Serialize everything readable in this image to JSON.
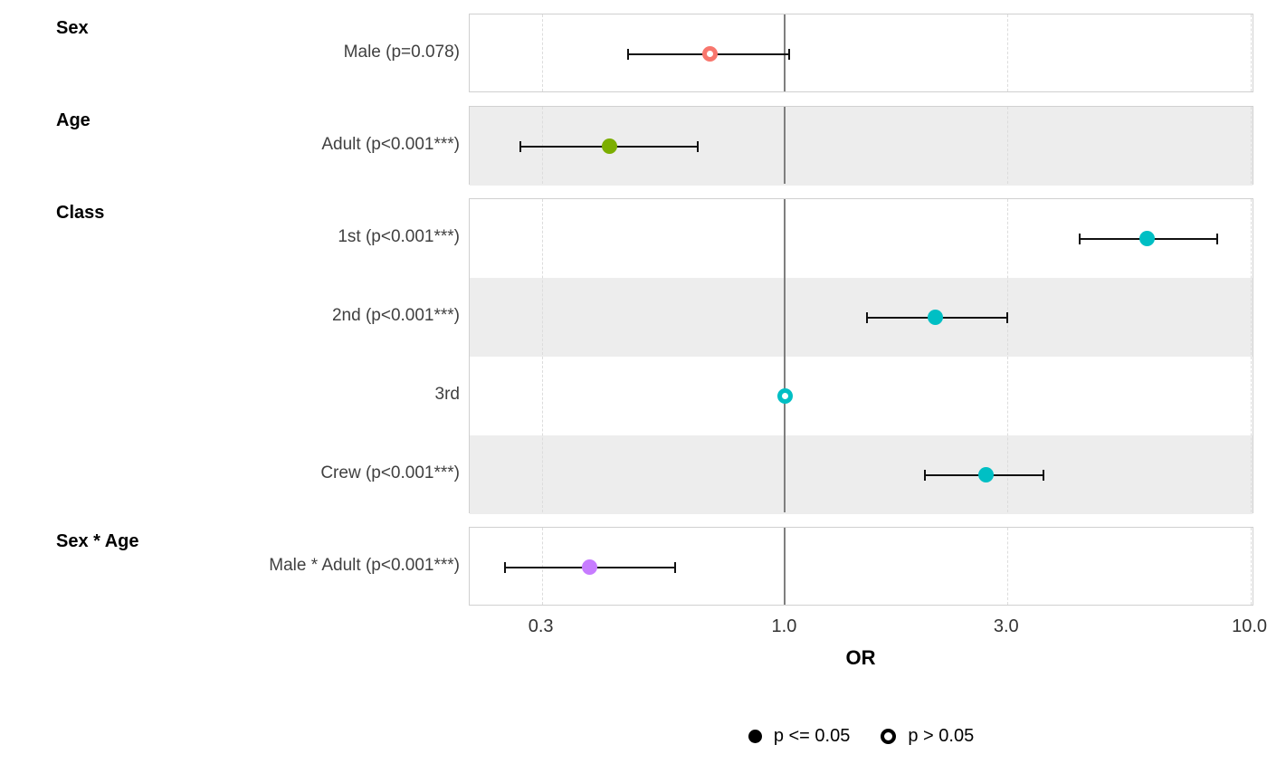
{
  "chart_data": {
    "type": "forest",
    "title": "",
    "xlabel": "OR",
    "x_scale": "log10",
    "x_range": [
      0.21,
      10.2
    ],
    "x_ticks": [
      {
        "value": 0.3,
        "label": "0.3"
      },
      {
        "value": 1.0,
        "label": "1.0"
      },
      {
        "value": 3.0,
        "label": "3.0"
      },
      {
        "value": 10.0,
        "label": "10.0"
      }
    ],
    "ref_line": 1.0,
    "facets": [
      {
        "label": "Sex",
        "rows": [
          {
            "label": "Male (p=0.078)",
            "or": 0.69,
            "ci_low": 0.46,
            "ci_high": 1.02,
            "color": "#F8766D",
            "significant": false
          }
        ]
      },
      {
        "label": "Age",
        "rows": [
          {
            "label": "Adult (p<0.001***)",
            "or": 0.42,
            "ci_low": 0.27,
            "ci_high": 0.65,
            "color": "#7CAE00",
            "significant": true
          }
        ]
      },
      {
        "label": "Class",
        "rows": [
          {
            "label": "1st (p<0.001***)",
            "or": 6.0,
            "ci_low": 4.3,
            "ci_high": 8.5,
            "color": "#00BFC4",
            "significant": true
          },
          {
            "label": "2nd (p<0.001***)",
            "or": 2.1,
            "ci_low": 1.5,
            "ci_high": 3.0,
            "color": "#00BFC4",
            "significant": true
          },
          {
            "label": "3rd",
            "or": 1.0,
            "ci_low": null,
            "ci_high": null,
            "color": "#00BFC4",
            "significant": false
          },
          {
            "label": "Crew (p<0.001***)",
            "or": 2.7,
            "ci_low": 2.0,
            "ci_high": 3.6,
            "color": "#00BFC4",
            "significant": true
          }
        ]
      },
      {
        "label": "Sex * Age",
        "rows": [
          {
            "label": "Male * Adult (p<0.001***)",
            "or": 0.38,
            "ci_low": 0.25,
            "ci_high": 0.58,
            "color": "#C77CFF",
            "significant": true
          }
        ]
      }
    ],
    "legend": [
      {
        "label": "p <= 0.05",
        "filled": true
      },
      {
        "label": "p > 0.05",
        "filled": false
      }
    ],
    "style": {
      "stripe_fill": "#EDEDED",
      "panel_border": "#D0D0D0",
      "ref_line_color": "#7F7F7F",
      "gridline_color": "#DCDCDC",
      "errorbar_color": "#111111",
      "row_label_color": "#404040",
      "legend_marker_color": "#000000"
    }
  }
}
